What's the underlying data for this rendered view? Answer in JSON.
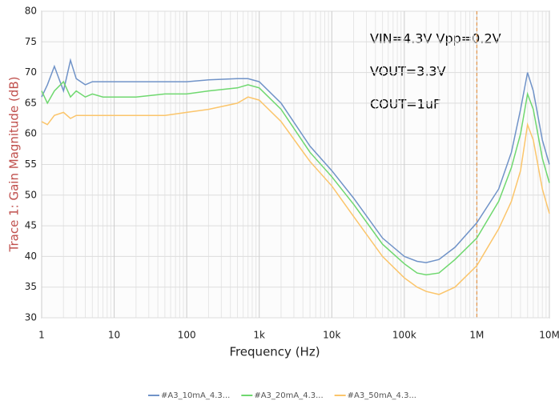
{
  "chart_data": {
    "type": "line",
    "ylabel": "Trace 1: Gain Magnitude (dB)",
    "xlabel": "Frequency (Hz)",
    "annotations": [
      "VIN=4.3V Vpp=0.2V",
      "VOUT=3.3V",
      "COUT=1uF"
    ],
    "xscale": "log",
    "grid": true,
    "legend": "bottom",
    "xlim": [
      1,
      10000000
    ],
    "xticks": [
      1,
      10,
      100,
      {
        "value": 1000,
        "label": "1k"
      },
      {
        "value": 10000,
        "label": "10k"
      },
      {
        "value": 100000,
        "label": "100k"
      },
      {
        "value": 1000000,
        "label": "1M"
      },
      {
        "value": 10000000,
        "label": "10M"
      }
    ],
    "ylim": [
      30,
      80
    ],
    "yticks": [
      30,
      35,
      40,
      45,
      50,
      55,
      60,
      65,
      70,
      75,
      80
    ],
    "marker_x": 1000000,
    "marker_color": "#e39a55",
    "x": [
      1,
      1.2,
      1.5,
      2,
      2.5,
      3,
      4,
      5,
      7,
      10,
      20,
      50,
      100,
      200,
      500,
      700,
      1000,
      2000,
      5000,
      10000,
      20000,
      50000,
      100000,
      150000,
      200000,
      300000,
      500000,
      1000000,
      2000000,
      3000000,
      4000000,
      5000000,
      6000000,
      8000000,
      10000000
    ],
    "series": [
      {
        "name": "#A3_10mA_4.3...",
        "color": "#7093c8",
        "values": [
          66,
          68,
          71,
          67,
          72,
          69,
          68,
          68.5,
          68.5,
          68.5,
          68.5,
          68.5,
          68.5,
          68.8,
          69,
          69,
          68.5,
          65,
          58,
          54,
          49.5,
          43,
          40,
          39.2,
          39,
          39.5,
          41.5,
          45.5,
          51,
          57,
          64,
          70,
          67,
          59,
          55
        ]
      },
      {
        "name": "#A3_20mA_4.3...",
        "color": "#6fd86f",
        "values": [
          67,
          65,
          67,
          68.5,
          66,
          67,
          66,
          66.5,
          66,
          66,
          66,
          66.5,
          66.5,
          67,
          67.5,
          68,
          67.5,
          64,
          57,
          53,
          48.5,
          42,
          38.8,
          37.3,
          37,
          37.3,
          39.5,
          43,
          49,
          54.5,
          60,
          66.5,
          64,
          56,
          52
        ]
      },
      {
        "name": "#A3_50mA_4.3...",
        "color": "#fbc56b",
        "values": [
          62,
          61.5,
          63,
          63.5,
          62.5,
          63,
          63,
          63,
          63,
          63,
          63,
          63,
          63.5,
          64,
          65,
          66,
          65.5,
          62,
          55.5,
          51.5,
          46.5,
          40,
          36.5,
          35,
          34.3,
          33.8,
          35,
          38.5,
          44.5,
          49,
          54,
          61.5,
          59,
          51,
          47
        ]
      }
    ]
  }
}
